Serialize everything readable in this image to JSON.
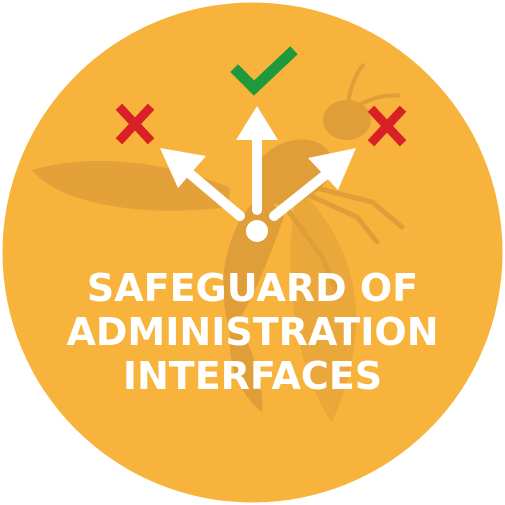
{
  "badge": {
    "title_lines": [
      "SAFEGUARD OF",
      "ADMINISTRATION",
      "INTERFACES"
    ],
    "icons": {
      "left": "x-mark-icon",
      "center": "check-mark-icon",
      "right": "x-mark-icon",
      "watermark": "wasp-icon"
    },
    "colors": {
      "background": "#F7B33B",
      "watermark": "#D9973A",
      "arrows": "#FFFFFF",
      "reject": "#D92027",
      "accept": "#1E9A3C"
    }
  }
}
